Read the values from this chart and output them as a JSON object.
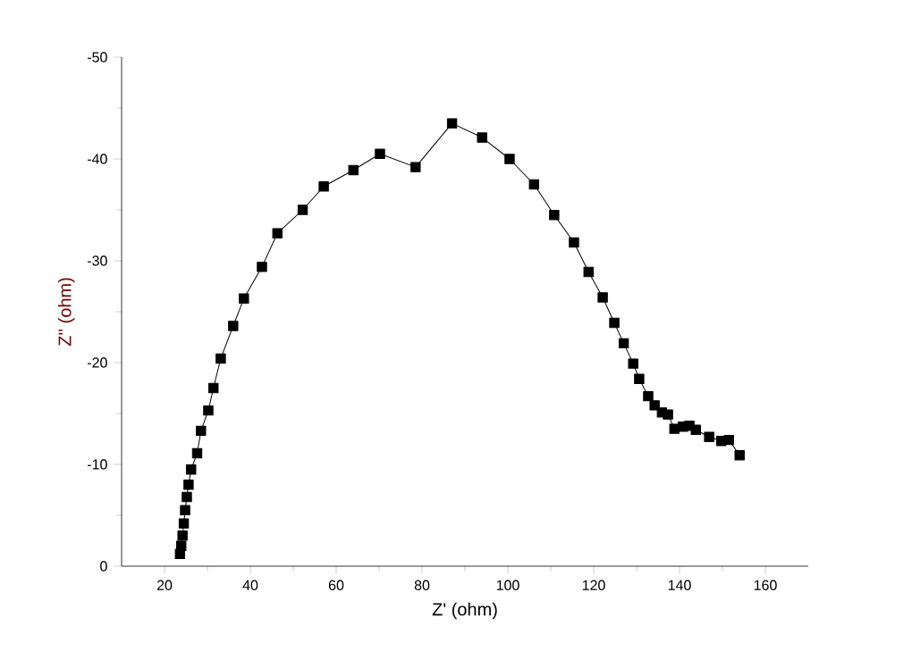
{
  "chart_data": {
    "type": "line",
    "xlabel": "Z' (ohm)",
    "ylabel": "Z'' (ohm)",
    "xlim": [
      10,
      170
    ],
    "xticks": [
      20,
      40,
      60,
      80,
      100,
      120,
      140,
      160
    ],
    "ylim": [
      0,
      -50
    ],
    "yticks": [
      0,
      -10,
      -20,
      -30,
      -40,
      -50
    ],
    "marker": "square",
    "line_style": "solid",
    "series": [
      {
        "color": "#000000",
        "x": [
          23.6,
          23.9,
          24.2,
          24.5,
          24.8,
          25.2,
          25.6,
          26.2,
          27.6,
          28.5,
          30.2,
          31.4,
          33.1,
          36.0,
          38.5,
          42.7,
          46.3,
          52.2,
          57.1,
          64.0,
          70.2,
          78.5,
          87.0,
          94.0,
          100.4,
          106.1,
          110.8,
          115.4,
          118.8,
          122.1,
          124.8,
          127.0,
          129.2,
          130.6,
          132.7,
          134.2,
          135.9,
          137.3,
          138.8,
          140.8,
          142.3,
          143.8,
          146.9,
          149.7,
          151.5,
          154.0
        ],
        "values": [
          -1.2,
          -2.0,
          -3.0,
          -4.2,
          -5.5,
          -6.8,
          -8.0,
          -9.5,
          -11.1,
          -13.3,
          -15.3,
          -17.5,
          -20.4,
          -23.6,
          -26.3,
          -29.4,
          -32.7,
          -35.0,
          -37.3,
          -38.9,
          -40.5,
          -39.2,
          -43.5,
          -42.1,
          -40.0,
          -37.5,
          -34.5,
          -31.8,
          -28.9,
          -26.4,
          -23.9,
          -21.9,
          -19.9,
          -18.4,
          -16.7,
          -15.8,
          -15.1,
          -14.9,
          -13.5,
          -13.7,
          -13.8,
          -13.4,
          -12.7,
          -12.3,
          -12.4,
          -10.9
        ]
      }
    ]
  }
}
